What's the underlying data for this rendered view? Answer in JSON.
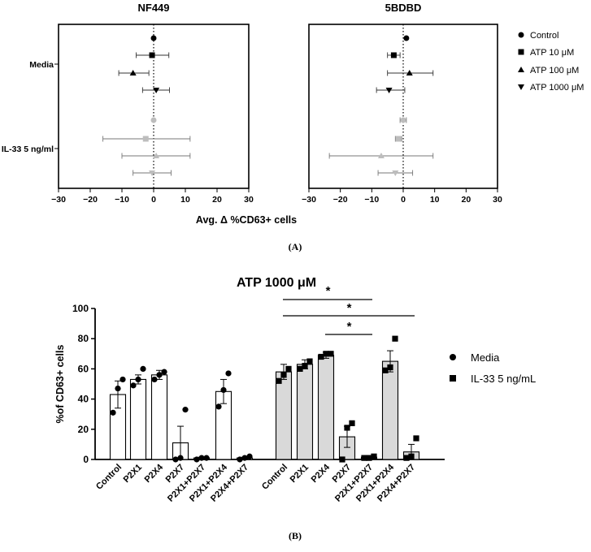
{
  "panelA": {
    "label": "(A)",
    "xlabel": "Avg. Δ %CD63+ cells",
    "row_labels": [
      "Media",
      "IL-33 5 ng/ml"
    ],
    "xticks": [
      -30,
      -20,
      -10,
      0,
      10,
      20,
      30
    ],
    "legend": [
      {
        "name": "Control",
        "marker": "circle"
      },
      {
        "name": "ATP 10 μM",
        "marker": "square"
      },
      {
        "name": "ATP 100 μM",
        "marker": "triangle-up"
      },
      {
        "name": "ATP 1000 μM",
        "marker": "triangle-down"
      }
    ]
  },
  "panelB": {
    "label": "(B)",
    "title": "ATP 1000 μM",
    "ylabel": "%of CD63+ cells",
    "yticks": [
      0,
      20,
      40,
      60,
      80,
      100
    ],
    "legend": [
      {
        "name": "Media",
        "marker": "circle"
      },
      {
        "name": "IL-33 5 ng/mL",
        "marker": "square"
      }
    ],
    "significance": [
      {
        "from": 7,
        "to": 11,
        "text": "*"
      },
      {
        "from": 7,
        "to": 13,
        "text": "*"
      },
      {
        "from": 9,
        "to": 11,
        "text": "*"
      }
    ]
  },
  "colors": {
    "media_bar": "#ffffff",
    "il33_bar": "#d9d9d9",
    "media_points": "#000000",
    "il33_points": "#bdbdbd"
  },
  "chart_data": [
    {
      "type": "scatter",
      "title": "NF449",
      "xlim": [
        -30,
        30
      ],
      "x_axis_label": "Avg. Δ %CD63+ cells",
      "points": [
        {
          "group": "Media",
          "series": "Control",
          "mean": 0,
          "err_low": 0,
          "err_high": 0
        },
        {
          "group": "Media",
          "series": "ATP 10 μM",
          "mean": -0.5,
          "err_low": -5.5,
          "err_high": 4.8
        },
        {
          "group": "Media",
          "series": "ATP 100 μM",
          "mean": -6.5,
          "err_low": -11,
          "err_high": -1.5
        },
        {
          "group": "Media",
          "series": "ATP 1000 μM",
          "mean": 0.8,
          "err_low": -3.5,
          "err_high": 5
        },
        {
          "group": "IL-33 5 ng/ml",
          "series": "Control",
          "mean": 0,
          "err_low": 0,
          "err_high": 0
        },
        {
          "group": "IL-33 5 ng/ml",
          "series": "ATP 10 μM",
          "mean": -2.5,
          "err_low": -16,
          "err_high": 11.5
        },
        {
          "group": "IL-33 5 ng/ml",
          "series": "ATP 100 μM",
          "mean": 0.8,
          "err_low": -10,
          "err_high": 11.5
        },
        {
          "group": "IL-33 5 ng/ml",
          "series": "ATP 1000 μM",
          "mean": -0.5,
          "err_low": -6.5,
          "err_high": 5.5
        }
      ]
    },
    {
      "type": "scatter",
      "title": "5BDBD",
      "xlim": [
        -30,
        30
      ],
      "x_axis_label": "Avg. Δ %CD63+ cells",
      "points": [
        {
          "group": "Media",
          "series": "Control",
          "mean": 1,
          "err_low": 1,
          "err_high": 1
        },
        {
          "group": "Media",
          "series": "ATP 10 μM",
          "mean": -3,
          "err_low": -5,
          "err_high": -1
        },
        {
          "group": "Media",
          "series": "ATP 100 μM",
          "mean": 2,
          "err_low": -5,
          "err_high": 9.5
        },
        {
          "group": "Media",
          "series": "ATP 1000 μM",
          "mean": -4.5,
          "err_low": -8.5,
          "err_high": 0.5
        },
        {
          "group": "IL-33 5 ng/ml",
          "series": "Control",
          "mean": 0,
          "err_low": -1,
          "err_high": 1
        },
        {
          "group": "IL-33 5 ng/ml",
          "series": "ATP 10 μM",
          "mean": -1.5,
          "err_low": -2.5,
          "err_high": -0.5
        },
        {
          "group": "IL-33 5 ng/ml",
          "series": "ATP 100 μM",
          "mean": -7,
          "err_low": -23.5,
          "err_high": 9.5
        },
        {
          "group": "IL-33 5 ng/ml",
          "series": "ATP 1000 μM",
          "mean": -2.5,
          "err_low": -8,
          "err_high": 3
        }
      ]
    },
    {
      "type": "bar",
      "title": "ATP 1000 μM",
      "ylabel": "%of CD63+ cells",
      "ylim": [
        0,
        100
      ],
      "categories": [
        "Control",
        "P2X1",
        "P2X4",
        "P2X7",
        "P2X1+P2X7",
        "P2X1+P2X4",
        "P2X4+P2X7",
        "Control",
        "P2X1",
        "P2X4",
        "P2X7",
        "P2X1+P2X7",
        "P2X1+P2X4",
        "P2X4+P2X7"
      ],
      "groups": [
        "Media",
        "Media",
        "Media",
        "Media",
        "Media",
        "Media",
        "Media",
        "IL-33 5 ng/mL",
        "IL-33 5 ng/mL",
        "IL-33 5 ng/mL",
        "IL-33 5 ng/mL",
        "IL-33 5 ng/mL",
        "IL-33 5 ng/mL",
        "IL-33 5 ng/mL"
      ],
      "values": [
        43,
        53,
        56,
        11,
        1,
        45,
        1,
        58,
        63,
        69,
        15,
        1.5,
        65,
        5
      ],
      "errors": [
        9,
        3,
        3,
        11,
        0.5,
        8,
        0.5,
        5,
        3,
        2,
        7,
        0.5,
        7,
        5
      ],
      "points": [
        [
          31,
          47,
          53
        ],
        [
          49,
          53,
          60
        ],
        [
          53,
          56,
          58
        ],
        [
          0,
          1,
          33
        ],
        [
          0,
          1,
          1
        ],
        [
          35,
          46,
          57
        ],
        [
          0,
          1,
          2
        ],
        [
          52,
          56,
          60
        ],
        [
          60,
          62,
          65
        ],
        [
          68,
          70,
          70
        ],
        [
          0,
          21,
          24
        ],
        [
          1,
          1,
          2
        ],
        [
          59,
          61,
          80
        ],
        [
          1,
          2,
          14
        ]
      ]
    }
  ]
}
